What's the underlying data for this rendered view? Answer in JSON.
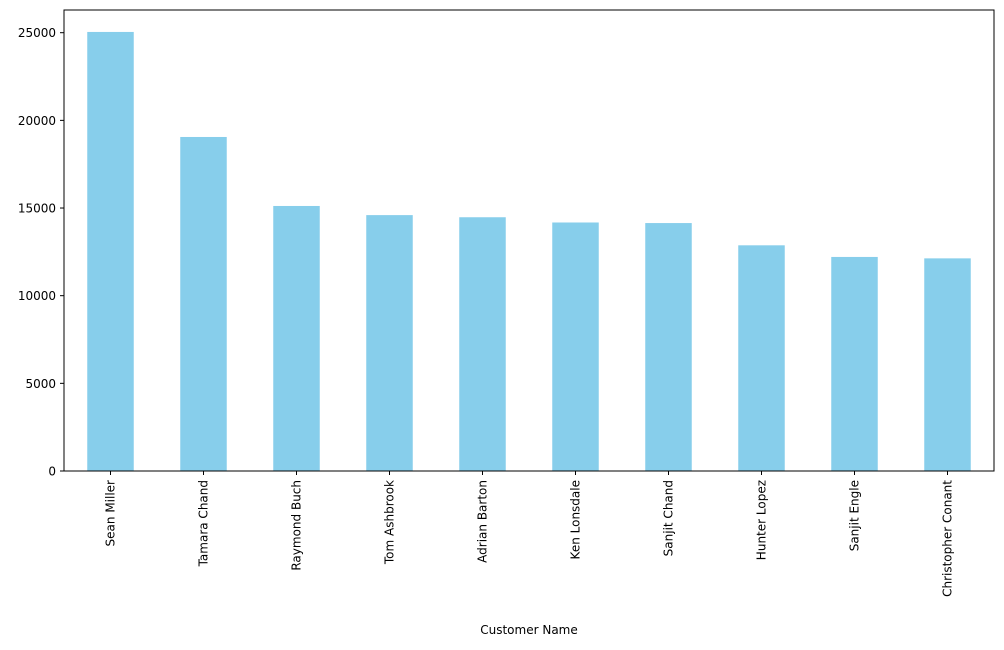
{
  "chart_data": {
    "type": "bar",
    "title": "",
    "xlabel": "Customer Name",
    "ylabel": "",
    "categories": [
      "Sean Miller",
      "Tamara Chand",
      "Raymond Buch",
      "Tom Ashbrook",
      "Adrian Barton",
      "Ken Lonsdale",
      "Sanjit Chand",
      "Hunter Lopez",
      "Sanjit Engle",
      "Christopher Conant"
    ],
    "values": [
      25043,
      19052,
      15117,
      14596,
      14474,
      14175,
      14142,
      12873,
      12209,
      12129
    ],
    "ylim": [
      0,
      26295
    ],
    "yticks": [
      0,
      5000,
      10000,
      15000,
      20000,
      25000
    ],
    "bar_color": "#87ceeb",
    "grid": false,
    "legend": "none"
  }
}
